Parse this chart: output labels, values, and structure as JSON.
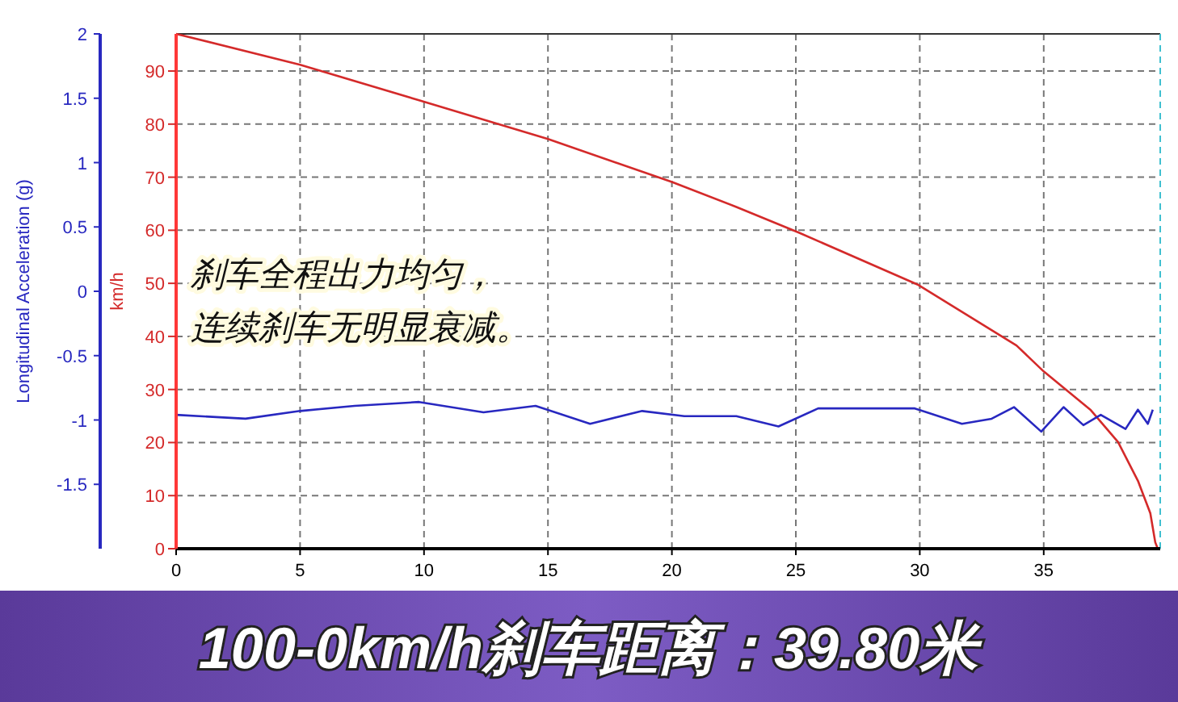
{
  "chart_data": {
    "type": "line",
    "title": "100-0km/h刹车距离：39.80米",
    "ylabel": "km/h",
    "y2label": "Longitudinal Acceleration (g)",
    "annotations": [
      "刹车全程出力均匀，",
      "连续刹车无明显衰减。"
    ],
    "xlim": [
      0,
      39.7
    ],
    "xticks": [
      0,
      5,
      10,
      15,
      20,
      25,
      30,
      35
    ],
    "ylim": [
      0,
      97
    ],
    "yticks": [
      0,
      10,
      20,
      30,
      40,
      50,
      60,
      70,
      80,
      90
    ],
    "y2lim": [
      -2,
      2
    ],
    "y2ticks": [
      -1.5,
      -1,
      -0.5,
      0,
      0.5,
      1,
      1.5,
      2
    ],
    "grid": true,
    "series": [
      {
        "color": "#d42a2a",
        "x": [
          0,
          5,
          9.8,
          15,
          20,
          22.6,
          25.1,
          29.9,
          33.9,
          35,
          36.9,
          38,
          38.8,
          39.3,
          39.5,
          39.6
        ],
        "values": [
          97,
          91.2,
          84.5,
          77.2,
          69.1,
          64.4,
          59.6,
          49.8,
          38.3,
          33.4,
          26.1,
          20.1,
          12.8,
          6.7,
          1.2,
          0
        ]
      },
      {
        "color": "#2828c0",
        "axis": "y2",
        "x": [
          0,
          2.8,
          5,
          7.2,
          9.8,
          12.4,
          14.5,
          16.7,
          18.8,
          20.5,
          22.6,
          24.3,
          25.9,
          29.8,
          31.7,
          32.9,
          33.8,
          34.9,
          35.8,
          36.6,
          37.3,
          38.3,
          38.8,
          39.2,
          39.4
        ],
        "values": [
          -0.96,
          -0.99,
          -0.93,
          -0.89,
          -0.86,
          -0.94,
          -0.89,
          -1.03,
          -0.93,
          -0.97,
          -0.97,
          -1.05,
          -0.91,
          -0.91,
          -1.03,
          -0.99,
          -0.9,
          -1.09,
          -0.9,
          -1.04,
          -0.96,
          -1.07,
          -0.92,
          -1.03,
          -0.92
        ]
      }
    ]
  }
}
